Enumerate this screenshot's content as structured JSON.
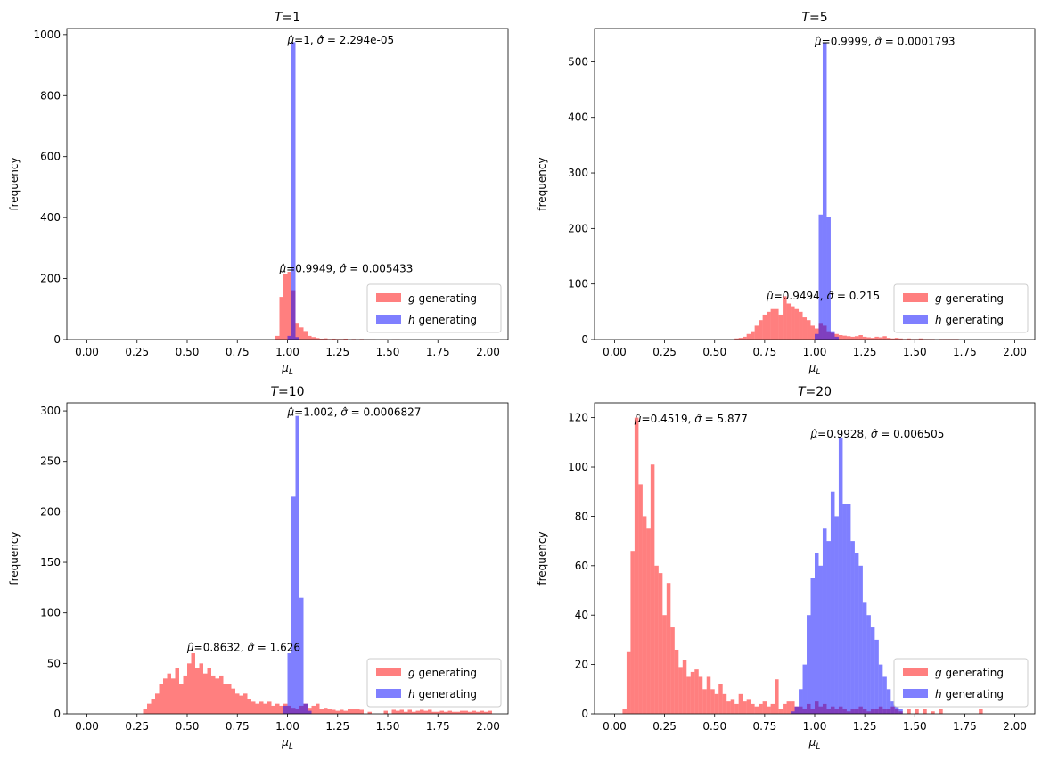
{
  "figure": {
    "ylabel": "frequency",
    "xlabel_var": "μ",
    "xlabel_sub": "L",
    "legend": {
      "entries": [
        {
          "var": "g",
          "label": "generating",
          "color": "#ff0000"
        },
        {
          "var": "h",
          "label": "generating",
          "color": "#0000ff"
        }
      ],
      "placement": "lower-right"
    }
  },
  "chart_data": [
    {
      "type": "histogram",
      "title_var": "T",
      "title_value": "1",
      "xlim": [
        -0.1,
        2.1
      ],
      "ylim": [
        0,
        1020
      ],
      "xticks": [
        "0.00",
        "0.25",
        "0.50",
        "0.75",
        "1.00",
        "1.25",
        "1.50",
        "1.75",
        "2.00"
      ],
      "yticks": [
        0,
        200,
        400,
        600,
        800,
        1000
      ],
      "bin_start": 0.94,
      "bin_width": 0.02,
      "series": [
        {
          "name": "g generating",
          "var": "g",
          "color": "#ff0000",
          "values": [
            12,
            140,
            215,
            222,
            162,
            55,
            40,
            28,
            12,
            8,
            5,
            3,
            4,
            2,
            3,
            2,
            2,
            3,
            1,
            2,
            1,
            2,
            1,
            1,
            1,
            0,
            1,
            1,
            0,
            1,
            1
          ],
          "annotation": {
            "mu": "0.9949",
            "sigma": "0.005433",
            "x": 0.96,
            "y": 220
          }
        },
        {
          "name": "h generating",
          "var": "h",
          "color": "#0000ff",
          "values": [
            0,
            0,
            0,
            12,
            975,
            8
          ],
          "annotation": {
            "mu": "1",
            "sigma": "2.294e-05",
            "x": 1.0,
            "y": 970
          }
        }
      ]
    },
    {
      "type": "histogram",
      "title_var": "T",
      "title_value": "5",
      "xlim": [
        -0.1,
        2.1
      ],
      "ylim": [
        0,
        560
      ],
      "xticks": [
        "0.00",
        "0.25",
        "0.50",
        "0.75",
        "1.00",
        "1.25",
        "1.50",
        "1.75",
        "2.00"
      ],
      "yticks": [
        0,
        100,
        200,
        300,
        400,
        500
      ],
      "bin_start": 0.6,
      "bin_width": 0.02,
      "series": [
        {
          "name": "g generating",
          "var": "g",
          "color": "#ff0000",
          "values": [
            2,
            3,
            5,
            10,
            15,
            25,
            35,
            45,
            50,
            55,
            55,
            45,
            78,
            65,
            60,
            55,
            50,
            40,
            35,
            25,
            20,
            30,
            25,
            15,
            12,
            10,
            8,
            7,
            6,
            5,
            6,
            8,
            5,
            4,
            3,
            5,
            4,
            6,
            3,
            2,
            3,
            2,
            1,
            2,
            1,
            1,
            2,
            1,
            1,
            1,
            0,
            1,
            1,
            1,
            1,
            1
          ],
          "annotation": {
            "mu": "0.9494",
            "sigma": "0.215",
            "x": 0.76,
            "y": 72
          }
        },
        {
          "name": "h generating",
          "var": "h",
          "color": "#0000ff",
          "values": [
            0,
            0,
            0,
            0,
            0,
            0,
            0,
            0,
            0,
            0,
            0,
            0,
            0,
            0,
            0,
            0,
            0,
            0,
            0,
            0,
            10,
            225,
            535,
            220,
            15,
            5
          ],
          "annotation": {
            "mu": "0.9999",
            "sigma": "0.0001793",
            "x": 1.0,
            "y": 530
          }
        }
      ]
    },
    {
      "type": "histogram",
      "title_var": "T",
      "title_value": "10",
      "xlim": [
        -0.1,
        2.1
      ],
      "ylim": [
        0,
        308
      ],
      "xticks": [
        "0.00",
        "0.25",
        "0.50",
        "0.75",
        "1.00",
        "1.25",
        "1.50",
        "1.75",
        "2.00"
      ],
      "yticks": [
        0,
        50,
        100,
        150,
        200,
        250,
        300
      ],
      "bin_start": 0.28,
      "bin_width": 0.02,
      "series": [
        {
          "name": "g generating",
          "var": "g",
          "color": "#ff0000",
          "values": [
            5,
            10,
            15,
            20,
            30,
            35,
            40,
            35,
            45,
            30,
            38,
            50,
            60,
            45,
            50,
            40,
            45,
            38,
            35,
            38,
            30,
            30,
            25,
            20,
            18,
            20,
            15,
            12,
            10,
            12,
            10,
            12,
            8,
            10,
            8,
            10,
            8,
            6,
            5,
            8,
            10,
            6,
            8,
            10,
            5,
            6,
            5,
            4,
            3,
            4,
            3,
            5,
            5,
            5,
            4,
            0,
            2,
            0,
            0,
            0,
            3,
            0,
            4,
            3,
            4,
            2,
            4,
            2,
            3,
            4,
            3,
            4,
            2,
            2,
            3,
            2,
            3,
            2,
            2,
            3,
            3,
            2,
            3,
            2,
            3,
            2,
            3
          ],
          "annotation": {
            "mu": "0.8632",
            "sigma": "1.626",
            "x": 0.5,
            "y": 62
          }
        },
        {
          "name": "h generating",
          "var": "h",
          "color": "#0000ff",
          "values": [
            0,
            0,
            0,
            0,
            0,
            0,
            0,
            0,
            0,
            0,
            0,
            0,
            0,
            0,
            0,
            0,
            0,
            0,
            0,
            0,
            0,
            0,
            0,
            0,
            0,
            0,
            0,
            0,
            0,
            0,
            0,
            0,
            0,
            0,
            0,
            8,
            60,
            215,
            295,
            115,
            10,
            3
          ],
          "annotation": {
            "mu": "1.002",
            "sigma": "0.0006827",
            "x": 1.0,
            "y": 295
          }
        }
      ]
    },
    {
      "type": "histogram",
      "title_var": "T",
      "title_value": "20",
      "xlim": [
        -0.1,
        2.1
      ],
      "ylim": [
        0,
        126
      ],
      "xticks": [
        "0.00",
        "0.25",
        "0.50",
        "0.75",
        "1.00",
        "1.25",
        "1.50",
        "1.75",
        "2.00"
      ],
      "yticks": [
        0,
        20,
        40,
        60,
        80,
        100,
        120
      ],
      "bin_start": 0.04,
      "bin_width": 0.02,
      "series": [
        {
          "name": "g generating",
          "var": "g",
          "color": "#ff0000",
          "values": [
            2,
            25,
            66,
            120,
            93,
            80,
            75,
            101,
            60,
            57,
            40,
            53,
            35,
            26,
            19,
            22,
            15,
            17,
            18,
            15,
            10,
            15,
            10,
            8,
            12,
            8,
            5,
            6,
            4,
            8,
            5,
            6,
            4,
            3,
            4,
            5,
            3,
            4,
            14,
            2,
            4,
            5,
            5,
            3,
            3,
            2,
            4,
            2,
            5,
            3,
            4,
            2,
            3,
            2,
            3,
            2,
            1,
            2,
            2,
            3,
            2,
            1,
            2,
            2,
            3,
            2,
            2,
            3,
            2,
            1,
            0,
            2,
            0,
            2,
            0,
            2,
            0,
            1,
            0,
            2,
            0,
            0,
            0,
            0,
            0,
            0,
            0,
            0,
            0,
            2
          ],
          "annotation": {
            "mu": "0.4519",
            "sigma": "5.877",
            "x": 0.1,
            "y": 118
          }
        },
        {
          "name": "h generating",
          "var": "h",
          "color": "#0000ff",
          "values": [
            0,
            0,
            0,
            0,
            0,
            0,
            0,
            0,
            0,
            0,
            0,
            0,
            0,
            0,
            0,
            0,
            0,
            0,
            0,
            0,
            0,
            0,
            0,
            0,
            0,
            0,
            0,
            0,
            0,
            0,
            0,
            0,
            0,
            0,
            0,
            0,
            0,
            0,
            0,
            0,
            0,
            0,
            1,
            3,
            10,
            20,
            40,
            55,
            65,
            60,
            75,
            70,
            90,
            80,
            112,
            85,
            85,
            70,
            65,
            60,
            45,
            40,
            35,
            30,
            20,
            15,
            10,
            5,
            3,
            2
          ],
          "annotation": {
            "mu": "0.9928",
            "sigma": "0.006505",
            "x": 0.98,
            "y": 112
          }
        }
      ]
    }
  ]
}
